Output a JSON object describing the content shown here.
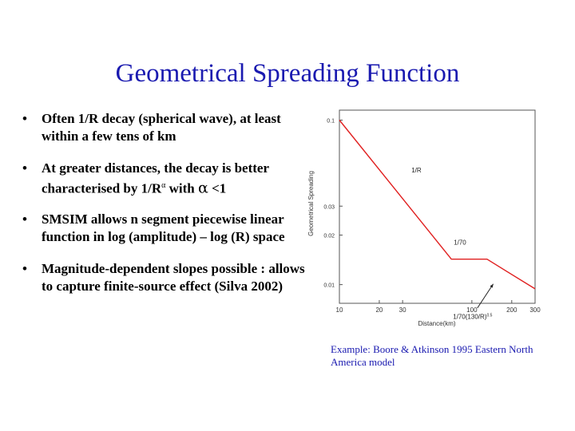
{
  "slide": {
    "title": "Geometrical Spreading Function",
    "bullet_symbol": "•",
    "bullets": [
      {
        "text": "Often 1/R decay (spherical wave), at least within a few tens of km"
      },
      {
        "text_before": "At greater distances, the decay is better characterised by 1/R",
        "sup": "α",
        "text_mid": " with ",
        "alpha": "α",
        "text_after": " <1"
      },
      {
        "text": "SMSIM allows n segment piecewise linear function in log (amplitude) – log (R) space"
      },
      {
        "text": "Magnitude-dependent slopes possible : allows to capture finite-source effect (Silva 2002)"
      }
    ],
    "caption": "Example: Boore & Atkinson 1995 Eastern North America model"
  },
  "chart_data": {
    "type": "line",
    "xlabel": "Distance(km)",
    "ylabel": "Geometrical Spreading",
    "x_scale": "log",
    "y_scale": "log",
    "xlim": [
      10,
      300
    ],
    "ylim": [
      0.0077,
      0.115
    ],
    "x_ticks": [
      10,
      20,
      30,
      100,
      200,
      300
    ],
    "x_tick_labels": [
      "10",
      "20",
      "30",
      "100",
      "200",
      "300"
    ],
    "y_ticks": [
      0.1,
      0.03,
      0.02,
      0.01
    ],
    "y_tick_labels": [
      "0.1",
      "0.03",
      "0.02",
      "0.01"
    ],
    "grid": false,
    "line_color": "#e02020",
    "series": [
      {
        "x": [
          10,
          70,
          130,
          300
        ],
        "y": [
          0.1,
          0.01429,
          0.01429,
          0.009428
        ]
      }
    ],
    "annotations": [
      {
        "text": "1/R",
        "x": 35,
        "y": 0.048
      },
      {
        "text": "1/70",
        "x": 73,
        "y": 0.0175
      },
      {
        "text": "1/70(130/R)",
        "sup": "0.5",
        "x": 72,
        "y": 0.0062
      }
    ],
    "arrow": {
      "from": [
        110,
        0.0072
      ],
      "to": [
        145,
        0.0101
      ]
    }
  }
}
